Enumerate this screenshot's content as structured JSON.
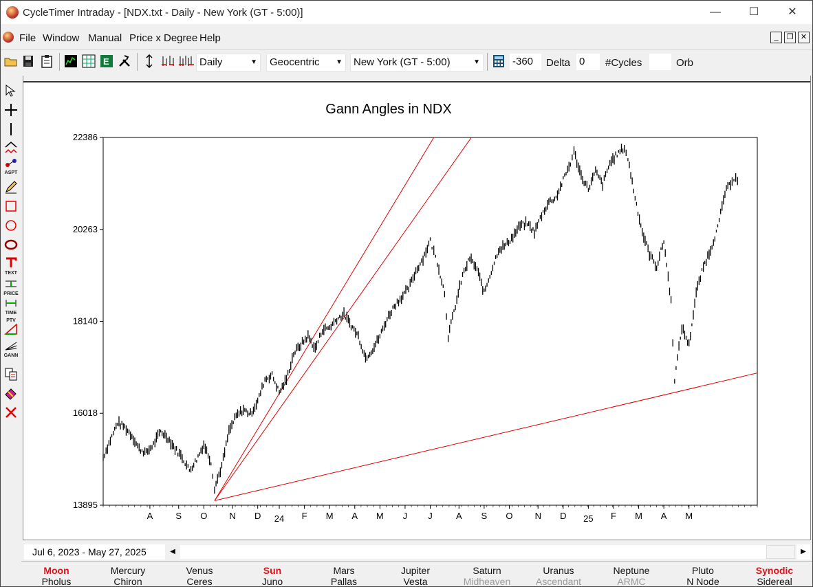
{
  "window": {
    "title": "CycleTimer Intraday - [NDX.txt - Daily - New York (GT - 5:00)]",
    "minimize": "—",
    "maximize": "☐",
    "close": "✕"
  },
  "menubar": {
    "items": [
      "File",
      "Window",
      "Manual",
      "Price x Degree",
      "Help"
    ],
    "mdi_minimize": "_",
    "mdi_restore": "❐",
    "mdi_close": "✕"
  },
  "toolbar": {
    "period": "Daily",
    "coordinate": "Geocentric",
    "timezone": "New York (GT - 5:00)",
    "offset_value": "-360",
    "delta_label": "Delta",
    "delta_value": "0",
    "cycles_label": "#Cycles",
    "cycles_value": "",
    "orb_label": "Orb"
  },
  "palette": {
    "tools": [
      "pointer-tool-icon",
      "crosshair-tool-icon",
      "vertical-line-tool-icon",
      "zigzag-tool-icon",
      "aspect-tool-icon",
      "pencil-tool-icon",
      "rectangle-tool-icon",
      "circle-tool-icon",
      "ellipse-tool-icon",
      "text-tool-icon",
      "price-tool-icon",
      "time-tool-icon",
      "ptv-tool-icon",
      "gann-tool-icon",
      "copy-tool-icon",
      "eraser-tool-icon",
      "delete-tool-icon"
    ],
    "labels": {
      "aspect": "ASPT",
      "text": "TEXT",
      "price": "PRICE",
      "time": "TIME",
      "ptv": "PTV",
      "gann": "GANN"
    }
  },
  "date_range": "Jul 6, 2023  - May 27, 2025",
  "planets": [
    {
      "top": "Moon",
      "bottom": "Pholus",
      "highlight": true,
      "dim_bottom": false
    },
    {
      "top": "Mercury",
      "bottom": "Chiron",
      "highlight": false,
      "dim_bottom": false
    },
    {
      "top": "Venus",
      "bottom": "Ceres",
      "highlight": false,
      "dim_bottom": false
    },
    {
      "top": "Sun",
      "bottom": "Juno",
      "highlight": true,
      "dim_bottom": false
    },
    {
      "top": "Mars",
      "bottom": "Pallas",
      "highlight": false,
      "dim_bottom": false
    },
    {
      "top": "Jupiter",
      "bottom": "Vesta",
      "highlight": false,
      "dim_bottom": false
    },
    {
      "top": "Saturn",
      "bottom": "Midheaven",
      "highlight": false,
      "dim_bottom": true
    },
    {
      "top": "Uranus",
      "bottom": "Ascendant",
      "highlight": false,
      "dim_bottom": true
    },
    {
      "top": "Neptune",
      "bottom": "ARMC",
      "highlight": false,
      "dim_bottom": true
    },
    {
      "top": "Pluto",
      "bottom": "N Node",
      "highlight": false,
      "dim_bottom": false
    },
    {
      "top": "Synodic",
      "bottom": "Sidereal",
      "highlight": true,
      "dim_bottom": false
    }
  ],
  "chart_data": {
    "type": "line",
    "title": "Gann Angles in NDX",
    "y_ticks": [
      "22386",
      "20263",
      "18140",
      "16018",
      "13895"
    ],
    "ylim": [
      13895,
      22386
    ],
    "x_ticks": [
      "A",
      "S",
      "O",
      "N",
      "D",
      "24",
      "F",
      "M",
      "A",
      "M",
      "J",
      "J",
      "A",
      "S",
      "O",
      "N",
      "D",
      "25",
      "F",
      "M",
      "A",
      "M"
    ],
    "grid": false,
    "colors": {
      "price": "#000000",
      "gann": "#e00000"
    },
    "series": [
      {
        "points": [
          [
            0,
            15000
          ],
          [
            2,
            15400
          ],
          [
            4,
            15800
          ],
          [
            6,
            15700
          ],
          [
            8,
            15500
          ],
          [
            10,
            15200
          ],
          [
            12,
            15100
          ],
          [
            14,
            15300
          ],
          [
            16,
            15600
          ],
          [
            18,
            15450
          ],
          [
            20,
            15200
          ],
          [
            22,
            15000
          ],
          [
            24,
            14700
          ],
          [
            26,
            14950
          ],
          [
            28,
            15300
          ],
          [
            30,
            14900
          ],
          [
            31,
            14300
          ],
          [
            33,
            14800
          ],
          [
            35,
            15600
          ],
          [
            37,
            15950
          ],
          [
            39,
            16100
          ],
          [
            41,
            16000
          ],
          [
            43,
            16300
          ],
          [
            45,
            16800
          ],
          [
            47,
            16900
          ],
          [
            49,
            16500
          ],
          [
            51,
            16800
          ],
          [
            53,
            17400
          ],
          [
            55,
            17600
          ],
          [
            57,
            17800
          ],
          [
            59,
            17500
          ],
          [
            61,
            17950
          ],
          [
            63,
            18000
          ],
          [
            65,
            18200
          ],
          [
            67,
            18300
          ],
          [
            69,
            18050
          ],
          [
            71,
            17800
          ],
          [
            73,
            17300
          ],
          [
            75,
            17500
          ],
          [
            77,
            17800
          ],
          [
            79,
            18200
          ],
          [
            81,
            18500
          ],
          [
            83,
            18700
          ],
          [
            85,
            18900
          ],
          [
            87,
            19300
          ],
          [
            89,
            19600
          ],
          [
            91,
            20000
          ],
          [
            92,
            19750
          ],
          [
            93,
            19500
          ],
          [
            95,
            18800
          ],
          [
            96,
            17800
          ],
          [
            98,
            18500
          ],
          [
            100,
            19200
          ],
          [
            102,
            19600
          ],
          [
            104,
            19350
          ],
          [
            106,
            18800
          ],
          [
            108,
            19300
          ],
          [
            110,
            19800
          ],
          [
            112,
            19900
          ],
          [
            114,
            20100
          ],
          [
            116,
            20350
          ],
          [
            118,
            20400
          ],
          [
            120,
            20200
          ],
          [
            122,
            20600
          ],
          [
            124,
            20900
          ],
          [
            126,
            21000
          ],
          [
            128,
            21400
          ],
          [
            130,
            21800
          ],
          [
            131,
            22050
          ],
          [
            133,
            21500
          ],
          [
            135,
            21200
          ],
          [
            137,
            21600
          ],
          [
            139,
            21300
          ],
          [
            141,
            21800
          ],
          [
            143,
            22000
          ],
          [
            145,
            22150
          ],
          [
            146,
            21900
          ],
          [
            148,
            21000
          ],
          [
            150,
            20200
          ],
          [
            152,
            19700
          ],
          [
            154,
            19400
          ],
          [
            156,
            20000
          ],
          [
            158,
            18600
          ],
          [
            159,
            16800
          ],
          [
            161,
            18000
          ],
          [
            163,
            17600
          ],
          [
            165,
            18800
          ],
          [
            167,
            19400
          ],
          [
            169,
            19800
          ],
          [
            171,
            20300
          ],
          [
            173,
            21100
          ],
          [
            175,
            21400
          ],
          [
            176,
            21500
          ],
          [
            177,
            21200
          ]
        ]
      }
    ],
    "gann_angles": [
      {
        "from": [
          31,
          14000
        ],
        "to": [
          92,
          22386
        ]
      },
      {
        "from": [
          31,
          14000
        ],
        "to": [
          177,
          16850
        ]
      },
      {
        "from": [
          31,
          14000
        ],
        "to": [
          50,
          16230
        ]
      }
    ]
  }
}
